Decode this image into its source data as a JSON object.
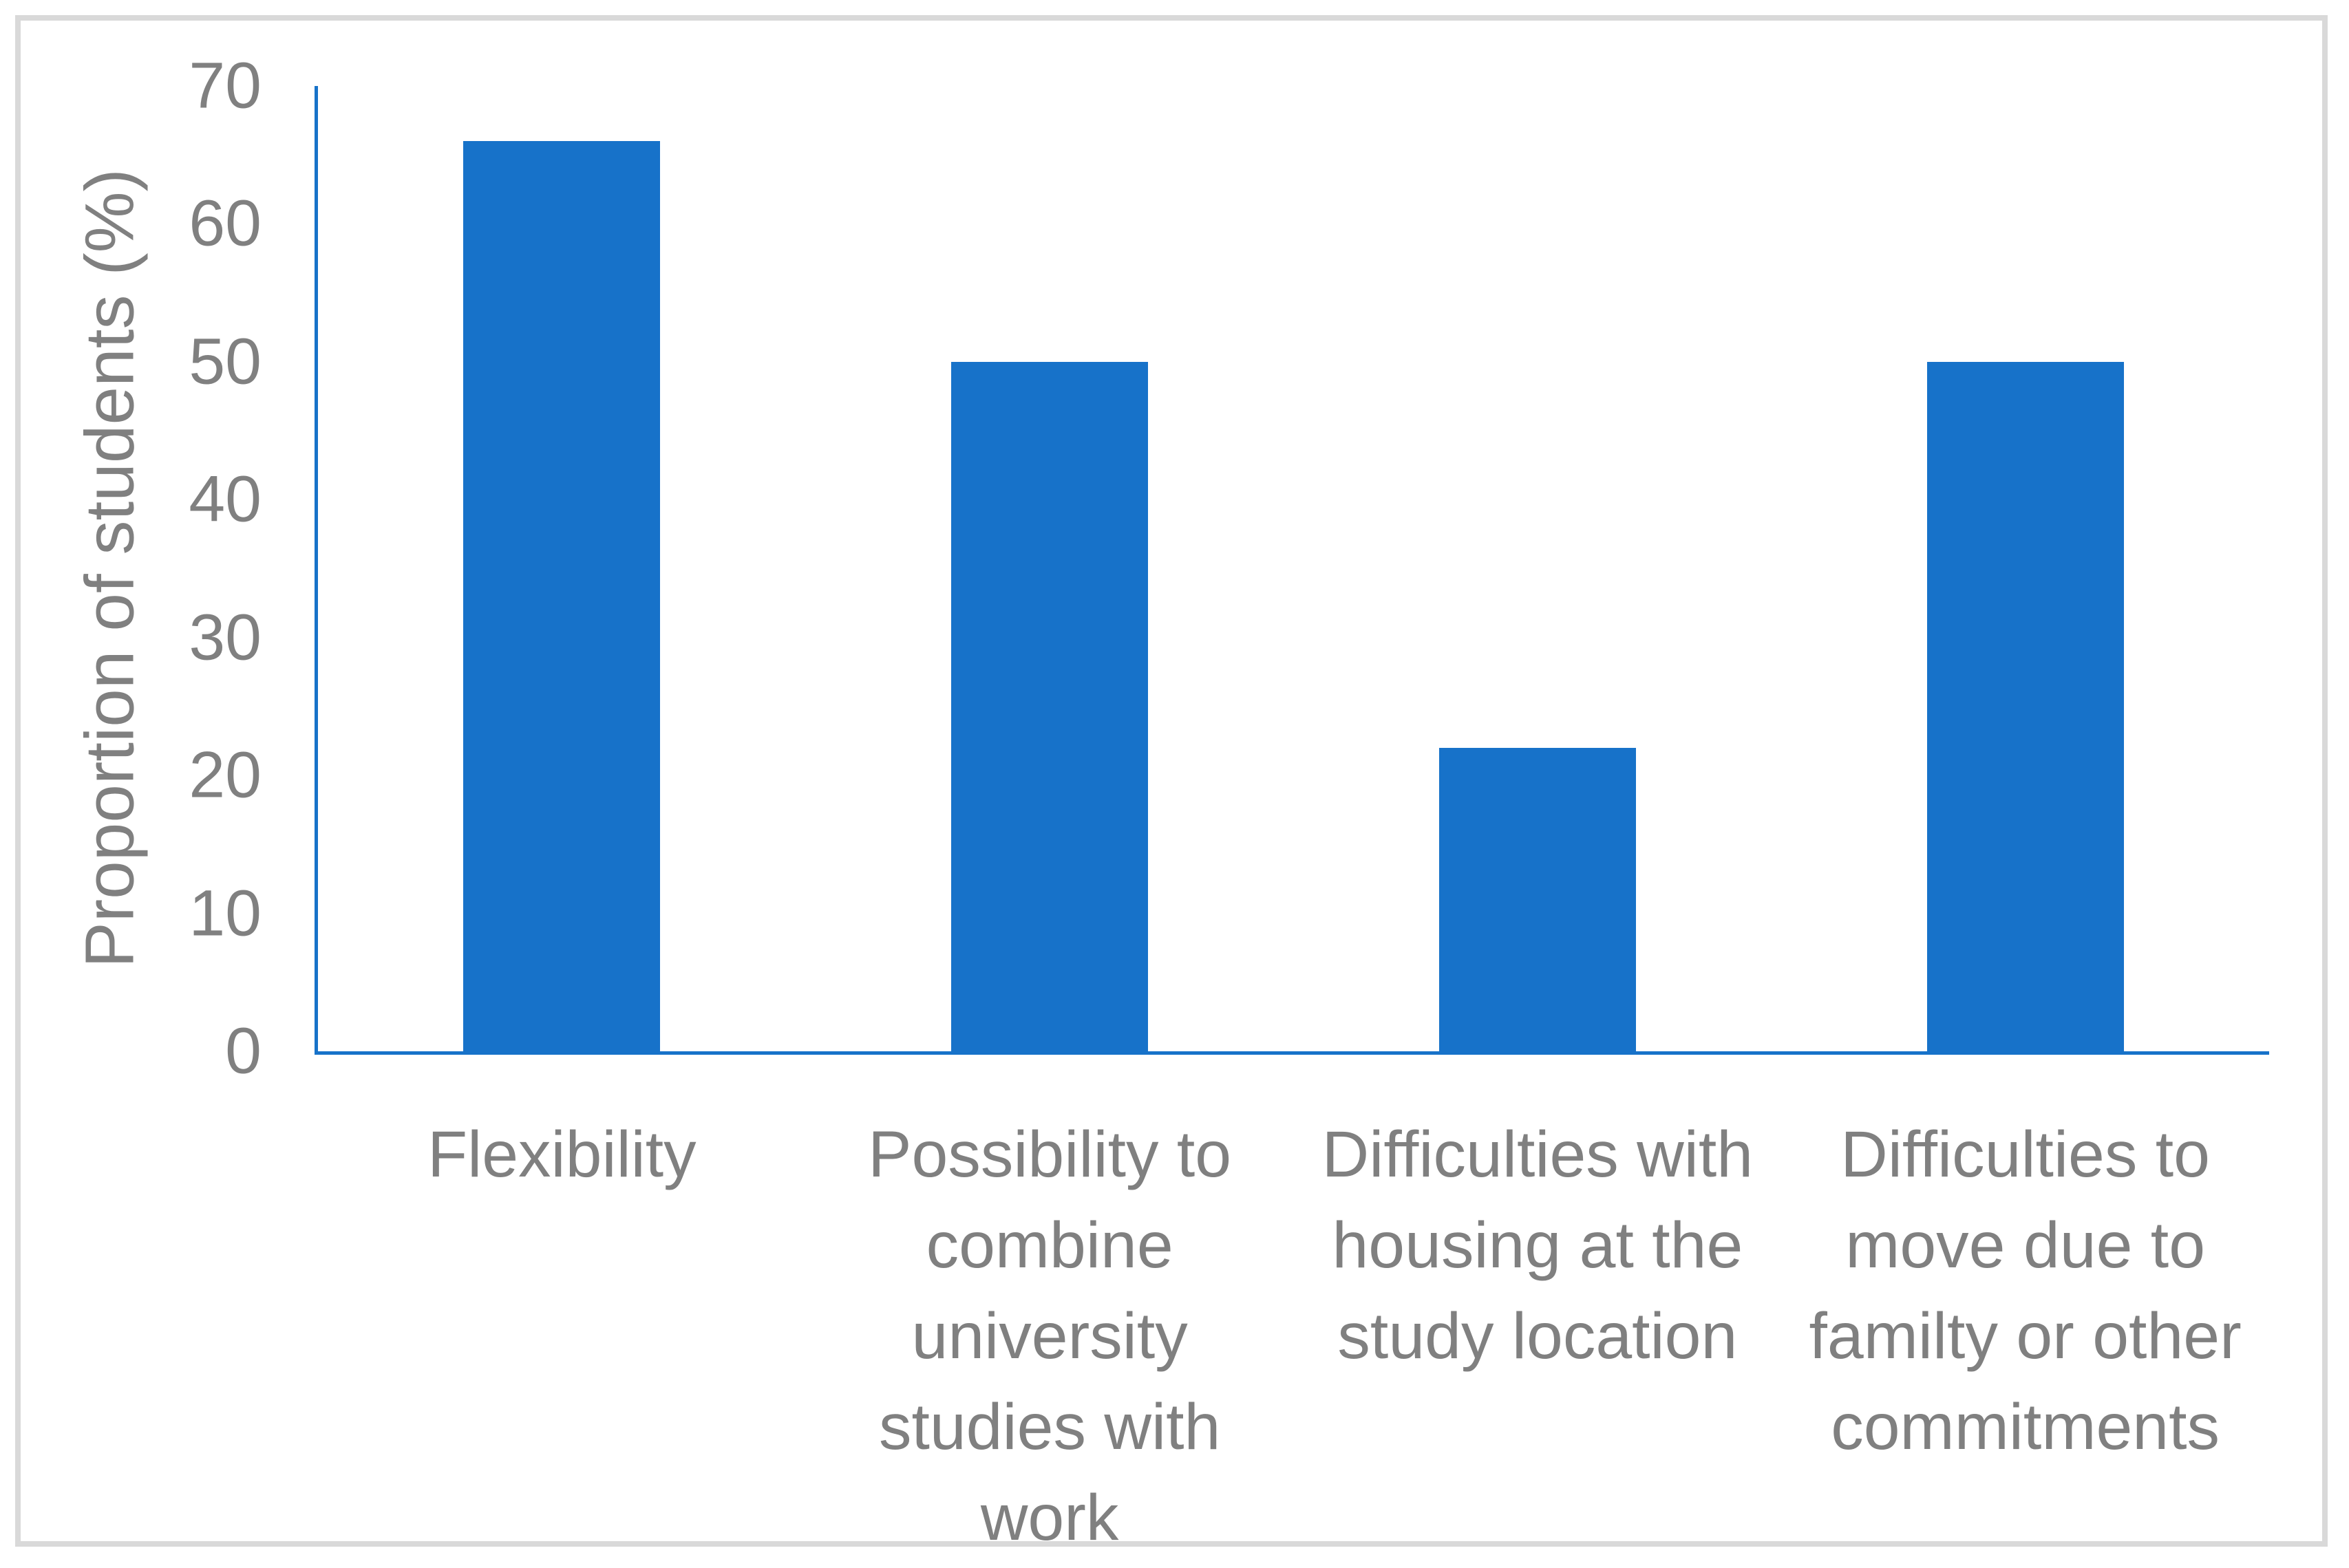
{
  "chart_data": {
    "type": "bar",
    "title": "",
    "xlabel": "",
    "ylabel": "Proportion of students (%)",
    "ylim": [
      0,
      70
    ],
    "yticks": [
      0,
      10,
      20,
      30,
      40,
      50,
      60,
      70
    ],
    "grid": false,
    "legend": false,
    "categories": [
      "Flexibility",
      "Possibility to combine university studies with work",
      "Difficulties with housing at the study location",
      "Difficulties to move due to familty or other commitments"
    ],
    "categories_display": [
      "Flexibility",
      "Possibility to\ncombine\nuniversity\nstudies with\nwork",
      "Difficulties with\nhousing at the\nstudy location",
      "Difficulties to\nmove due to\nfamilty or other\ncommitments"
    ],
    "values": [
      66,
      50,
      22,
      50
    ]
  },
  "colors": {
    "bar": "#1772C9",
    "axis": "#1772C9",
    "text": "#808080",
    "border": "#D9D9D9",
    "background": "#FFFFFF"
  }
}
